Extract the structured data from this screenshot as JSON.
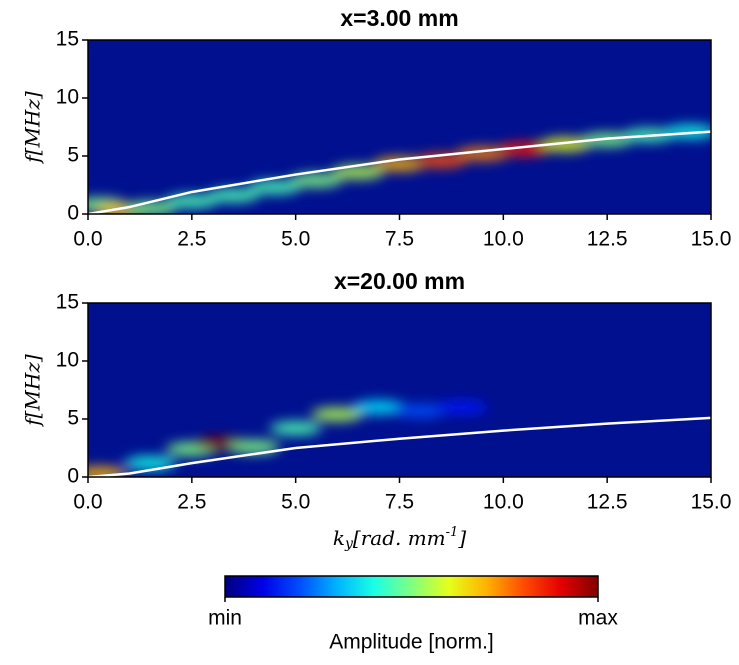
{
  "chart_data": [
    {
      "type": "heatmap",
      "title": "x=3.00 mm",
      "ylabel": {
        "main": "f[MHz]"
      },
      "xlim": [
        0,
        15
      ],
      "ylim": [
        0,
        15
      ],
      "xticks": [
        {
          "value": 0,
          "label": "0.0"
        },
        {
          "value": 2.5,
          "label": "2.5"
        },
        {
          "value": 5,
          "label": "5.0"
        },
        {
          "value": 7.5,
          "label": "7.5"
        },
        {
          "value": 10,
          "label": "10.0"
        },
        {
          "value": 12.5,
          "label": "12.5"
        },
        {
          "value": 15,
          "label": "15.0"
        }
      ],
      "yticks": [
        0,
        5,
        10,
        15
      ],
      "background": "#00108f",
      "intensity": {
        "x": [
          0.3,
          0.8,
          1.5,
          2.5,
          3.5,
          4.5,
          5.5,
          6.5,
          7.5,
          8.5,
          9.5,
          10.5,
          11.5,
          12.5,
          13.5,
          14.5
        ],
        "y": [
          0.8,
          0.3,
          0.5,
          1.1,
          1.6,
          2.3,
          2.9,
          3.6,
          4.3,
          4.6,
          5.2,
          5.6,
          6.0,
          6.4,
          6.8,
          7.1
        ],
        "amplitude": [
          0.5,
          0.7,
          0.5,
          0.45,
          0.45,
          0.45,
          0.5,
          0.55,
          0.7,
          0.8,
          0.75,
          0.85,
          0.6,
          0.5,
          0.45,
          0.4
        ]
      },
      "curve": {
        "color": "#ffffff",
        "x": [
          0,
          1,
          2.5,
          5,
          7.5,
          10,
          12.5,
          15
        ],
        "values": [
          0,
          0.6,
          1.9,
          3.4,
          4.7,
          5.6,
          6.5,
          7.1
        ]
      }
    },
    {
      "type": "heatmap",
      "title": "x=20.00 mm",
      "ylabel": {
        "main": "f[MHz]"
      },
      "xlabel": {
        "base": "k",
        "sub": "y",
        "main": "[rad. mm",
        "sup": "-1",
        "end": "]"
      },
      "xlim": [
        0,
        15
      ],
      "ylim": [
        0,
        15
      ],
      "xticks": [
        {
          "value": 0,
          "label": "0.0"
        },
        {
          "value": 2.5,
          "label": "2.5"
        },
        {
          "value": 5,
          "label": "5.0"
        },
        {
          "value": 7.5,
          "label": "7.5"
        },
        {
          "value": 10,
          "label": "10.0"
        },
        {
          "value": 12.5,
          "label": "12.5"
        },
        {
          "value": 15,
          "label": "15.0"
        }
      ],
      "yticks": [
        0,
        5,
        10,
        15
      ],
      "background": "#00108f",
      "intensity": {
        "x": [
          0.3,
          1.5,
          2.5,
          3.2,
          4.0,
          5.0,
          6.0,
          7.0,
          8.0,
          9.0
        ],
        "y": [
          0.3,
          1.2,
          2.4,
          2.9,
          2.6,
          4.2,
          5.4,
          6.0,
          5.7,
          6.0
        ],
        "amplitude": [
          0.7,
          0.4,
          0.5,
          1.0,
          0.5,
          0.45,
          0.55,
          0.35,
          0.2,
          0.15
        ]
      },
      "curve": {
        "color": "#ffffff",
        "x": [
          0,
          1,
          2.5,
          5,
          7.5,
          10,
          12.5,
          15
        ],
        "values": [
          0,
          0.3,
          1.2,
          2.5,
          3.3,
          4.0,
          4.6,
          5.1
        ]
      }
    }
  ],
  "colorbar": {
    "label": "Amplitude [norm.]",
    "lim": [
      0,
      1
    ],
    "ticks": [
      {
        "value": 0,
        "label": "min"
      },
      {
        "value": 1,
        "label": "max"
      }
    ]
  }
}
